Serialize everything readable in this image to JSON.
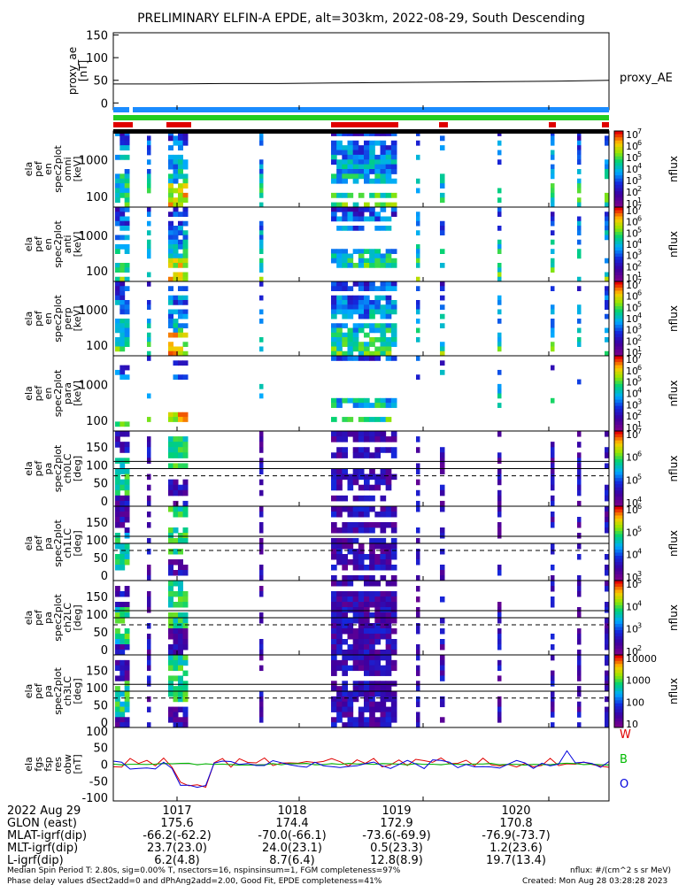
{
  "title": "PRELIMINARY ELFIN-A EPDE, alt=303km, 2022-08-29, South Descending",
  "chart_data": {
    "type": "heatmap",
    "title": "PRELIMINARY ELFIN-A EPDE, alt=303km, 2022-08-29, South Descending",
    "x_ticks": [
      "1017",
      "1018",
      "1019",
      "1020"
    ],
    "panels": [
      {
        "id": "proxy_ae",
        "type": "line",
        "ylabel": [
          "proxy_ae",
          "[nT]"
        ],
        "yticks": [
          "150",
          "100",
          "50",
          "0"
        ],
        "ylim": [
          -15,
          155
        ],
        "series_name": "proxy_AE",
        "values": [
          42,
          42,
          43,
          43,
          44,
          45,
          46,
          47,
          48,
          50
        ]
      },
      {
        "id": "en-omni",
        "ylabel": [
          "ela",
          "pef",
          "en",
          "spec2plot",
          "omni",
          "[keV]"
        ],
        "yticks": [
          "1000",
          "100"
        ],
        "cbar": {
          "ticks": [
            "10",
            "10",
            "10",
            "10",
            "10",
            "10",
            "10"
          ],
          "exps": [
            "7",
            "6",
            "5",
            "4",
            "3",
            "2",
            "1"
          ],
          "label": "nflux"
        }
      },
      {
        "id": "en-anti",
        "ylabel": [
          "ela",
          "pef",
          "en",
          "spec2plot",
          "anti",
          "[keV]"
        ],
        "yticks": [
          "1000",
          "100"
        ],
        "cbar": {
          "ticks": [
            "10",
            "10",
            "10",
            "10",
            "10",
            "10",
            "10"
          ],
          "exps": [
            "7",
            "6",
            "5",
            "4",
            "3",
            "2",
            "1"
          ],
          "label": "nflux"
        }
      },
      {
        "id": "en-perp",
        "ylabel": [
          "ela",
          "pef",
          "en",
          "spec2plot",
          "perp",
          "[keV]"
        ],
        "yticks": [
          "1000",
          "100"
        ],
        "cbar": {
          "ticks": [
            "10",
            "10",
            "10",
            "10",
            "10",
            "10",
            "10"
          ],
          "exps": [
            "7",
            "6",
            "5",
            "4",
            "3",
            "2",
            "1"
          ],
          "label": "nflux"
        }
      },
      {
        "id": "en-para",
        "ylabel": [
          "ela",
          "pef",
          "en",
          "spec2plot",
          "para",
          "[keV]"
        ],
        "yticks": [
          "1000",
          "100"
        ],
        "cbar": {
          "ticks": [
            "10",
            "10",
            "10",
            "10",
            "10",
            "10",
            "10"
          ],
          "exps": [
            "7",
            "6",
            "5",
            "4",
            "3",
            "2",
            "1"
          ],
          "label": "nflux"
        }
      },
      {
        "id": "pa-ch0",
        "ylabel": [
          "ela",
          "pef",
          "pa",
          "spec2plot",
          "ch0LC",
          "[deg]"
        ],
        "yticks": [
          "150",
          "100",
          "50",
          "0"
        ],
        "cbar": {
          "ticks": [
            "10",
            "10",
            "10",
            "10"
          ],
          "exps": [
            "7",
            "6",
            "5",
            "4"
          ],
          "label": "nflux"
        }
      },
      {
        "id": "pa-ch1",
        "ylabel": [
          "ela",
          "pef",
          "pa",
          "spec2plot",
          "ch1LC",
          "[deg]"
        ],
        "yticks": [
          "150",
          "100",
          "50",
          "0"
        ],
        "cbar": {
          "ticks": [
            "10",
            "10",
            "10",
            "10"
          ],
          "exps": [
            "6",
            "5",
            "4",
            "3"
          ],
          "label": "nflux"
        }
      },
      {
        "id": "pa-ch2",
        "ylabel": [
          "ela",
          "pef",
          "pa",
          "spec2plot",
          "ch2LC",
          "[deg]"
        ],
        "yticks": [
          "150",
          "100",
          "50",
          "0"
        ],
        "cbar": {
          "ticks": [
            "10",
            "10",
            "10",
            "10"
          ],
          "exps": [
            "5",
            "4",
            "3",
            "2"
          ],
          "label": "nflux"
        }
      },
      {
        "id": "pa-ch3",
        "ylabel": [
          "ela",
          "pef",
          "pa",
          "spec2plot",
          "ch3LC",
          "[deg]"
        ],
        "yticks": [
          "150",
          "100",
          "50",
          "0"
        ],
        "cbar": {
          "ticks": [
            "10000",
            "1000",
            "100",
            "10"
          ],
          "exps": [
            "",
            "",
            "",
            ""
          ],
          "label": "nflux"
        }
      },
      {
        "id": "fgs",
        "type": "line",
        "ylabel": [
          "ela",
          "fgs",
          "fsp",
          "res",
          "obw",
          "[nT]"
        ],
        "yticks": [
          "100",
          "50",
          "0",
          "-50",
          "-100"
        ],
        "ylim": [
          -110,
          110
        ],
        "legend": [
          {
            "label": "W",
            "color": "#e00000"
          },
          {
            "label": "B",
            "color": "#00bb00"
          },
          {
            "label": "O",
            "color": "#0000dd"
          }
        ]
      }
    ],
    "orbit_table": {
      "rows": [
        {
          "label": "2022 Aug 29",
          "values": [
            "1017",
            "1018",
            "1019",
            "1020"
          ]
        },
        {
          "label": "GLON (east)",
          "values": [
            "175.6",
            "174.4",
            "172.9",
            "170.8"
          ]
        },
        {
          "label": "MLAT-igrf(dip)",
          "values": [
            "-66.2(-62.2)",
            "-70.0(-66.1)",
            "-73.6(-69.9)",
            "-76.9(-73.7)"
          ]
        },
        {
          "label": "MLT-igrf(dip)",
          "values": [
            "23.7(23.0)",
            "24.0(23.1)",
            "0.5(23.3)",
            "1.2(23.6)"
          ]
        },
        {
          "label": "L-igrf(dip)",
          "values": [
            "6.2(4.8)",
            "8.7(6.4)",
            "12.8(8.9)",
            "19.7(13.4)"
          ]
        }
      ]
    },
    "footer": {
      "line1": "Median Spin Period T: 2.80s, sig=0.00% T, nsectors=16, nspinsinsum=1, FGM completeness=97%",
      "line2": "Phase delay values dSect2add=0 and dPhAng2add=2.00, Good Fit, EPDE completeness=41%",
      "units": "nflux: #/(cm^2 s sr MeV)",
      "created": "Created: Mon Aug 28 03:28:28 2023"
    },
    "colors": {
      "red": "#e00000",
      "green": "#00bb00",
      "blue": "#0000dd",
      "bar_blue": "#1a8cff"
    }
  }
}
